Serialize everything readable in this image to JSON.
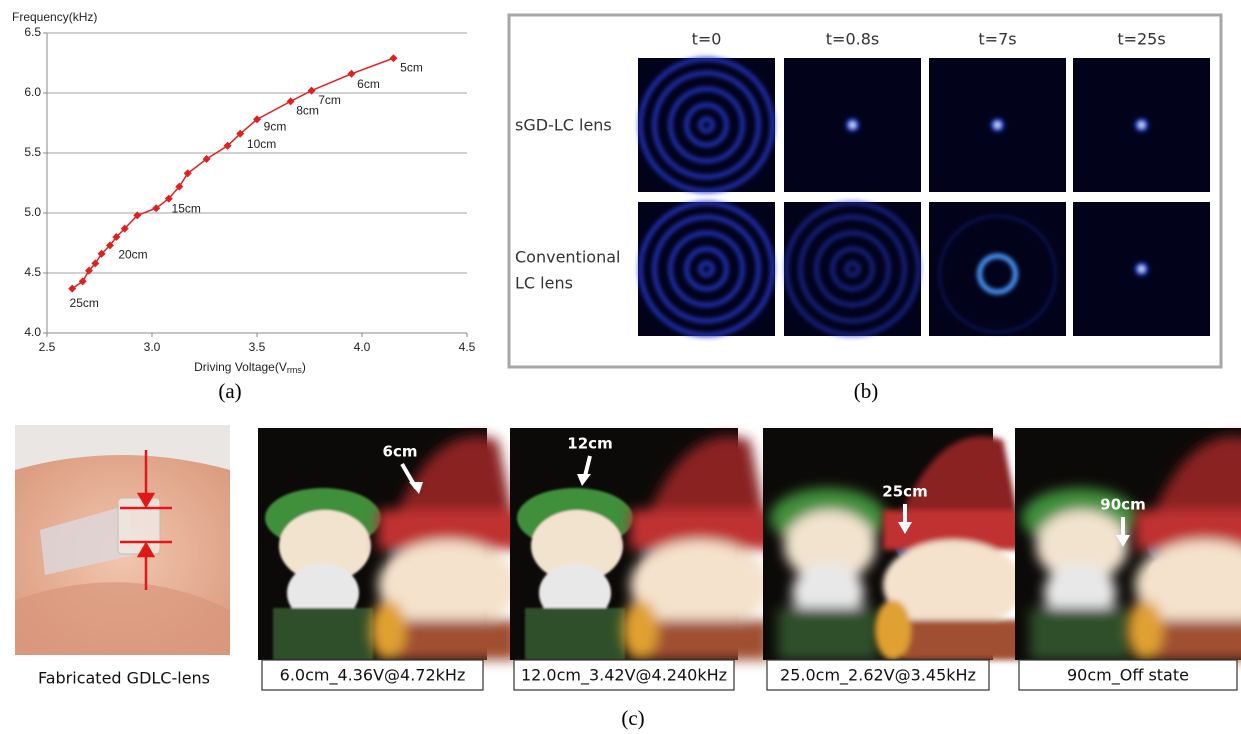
{
  "chart_data": {
    "type": "line",
    "ylabel": "Frequency(kHz)",
    "xlabel_parts": [
      "Driving Voltage(V",
      "rms",
      ")"
    ],
    "x": [
      2.62,
      2.67,
      2.7,
      2.73,
      2.76,
      2.8,
      2.83,
      2.87,
      2.93,
      3.02,
      3.08,
      3.13,
      3.17,
      3.26,
      3.36,
      3.42,
      3.5,
      3.66,
      3.76,
      3.95,
      4.15
    ],
    "series": [
      {
        "color": "#e02020",
        "values": [
          4.37,
          4.43,
          4.52,
          4.58,
          4.66,
          4.73,
          4.8,
          4.87,
          4.98,
          5.04,
          5.12,
          5.22,
          5.33,
          5.45,
          5.56,
          5.66,
          5.78,
          5.93,
          6.02,
          6.16,
          6.29
        ]
      }
    ],
    "annotations": [
      "25cm",
      "20cm",
      "15cm",
      "10cm",
      "9cm",
      "8cm",
      "7cm",
      "6cm",
      "5cm"
    ],
    "xlim": [
      2.5,
      4.5
    ],
    "xticks": [
      2.5,
      {
        "value": 3,
        "label": "3.0"
      },
      3.5,
      {
        "value": 4,
        "label": "4.0"
      },
      4.5
    ],
    "ylim": [
      4,
      6.5
    ],
    "yticks": [
      {
        "value": 4,
        "label": "4.0"
      },
      4.5,
      {
        "value": 5,
        "label": "5.0"
      },
      5.5,
      {
        "value": 6,
        "label": "6.0"
      },
      6.5
    ],
    "grid": true,
    "panel_label": "(a)"
  },
  "panel_b": {
    "label": "(b)",
    "columns": [
      "t=0",
      "t=0.8s",
      "t=7s",
      "t=25s"
    ],
    "rows": [
      [
        "sGD-LC lens"
      ],
      [
        "Conventional",
        "LC lens"
      ]
    ]
  },
  "panel_c": {
    "label": "(c)",
    "device_caption": "Fabricated GDLC-lens",
    "photos": [
      {
        "distance": "6cm",
        "caption": "6.0cm_4.36V@4.72kHz"
      },
      {
        "distance": "12cm",
        "caption": "12.0cm_3.42V@4.240kHz"
      },
      {
        "distance": "25cm",
        "caption": "25.0cm_2.62V@3.45kHz"
      },
      {
        "distance": "90cm",
        "caption": "90cm_Off state"
      }
    ]
  }
}
